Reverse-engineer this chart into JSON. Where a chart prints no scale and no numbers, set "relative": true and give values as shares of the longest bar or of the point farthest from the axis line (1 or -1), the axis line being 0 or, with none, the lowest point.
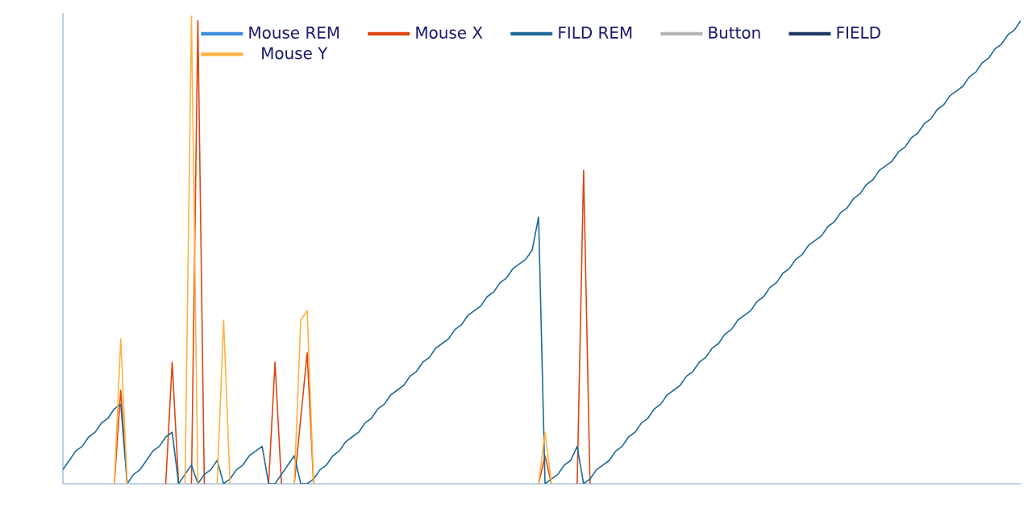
{
  "chart_data": {
    "type": "line",
    "relative": true,
    "legend": "top",
    "categories": [
      null,
      null,
      null,
      null,
      null,
      null,
      null,
      null,
      null,
      null,
      null,
      null,
      null,
      null,
      null,
      null,
      null,
      null,
      null,
      null,
      null,
      null,
      null,
      null,
      null,
      null,
      null,
      null,
      null,
      null,
      null,
      null,
      null,
      null,
      null,
      null,
      null,
      null,
      null,
      null,
      null,
      null,
      null,
      null,
      null,
      null,
      null,
      null,
      null,
      null,
      null,
      null,
      null,
      null,
      null,
      null,
      null,
      null,
      null,
      null,
      null,
      null,
      null,
      null,
      null,
      null,
      null,
      null,
      null,
      null,
      null,
      null,
      null,
      null,
      null,
      null,
      null,
      null,
      null,
      null,
      null,
      null,
      null,
      null,
      null,
      null,
      null,
      null,
      null,
      null,
      null,
      null,
      null,
      null,
      null,
      null,
      null,
      null,
      null,
      null,
      null,
      null,
      null,
      null,
      null,
      null,
      null,
      null,
      null,
      null,
      null,
      null,
      null,
      null,
      null,
      null,
      null,
      null,
      null,
      null,
      null,
      null,
      null,
      null,
      null,
      null,
      null,
      null,
      null,
      null,
      null,
      null,
      null,
      null,
      null,
      null,
      null,
      null,
      null,
      null,
      null,
      null,
      null,
      null,
      null,
      null,
      null,
      null,
      null,
      null
    ],
    "series": [
      {
        "name": "Mouse REM",
        "color": "#3b8de0",
        "values": [
          null,
          null,
          null,
          null,
          null,
          null,
          null,
          null,
          null,
          null,
          null,
          null,
          null,
          null,
          null,
          null,
          null,
          null,
          null,
          null,
          null,
          null,
          null,
          null,
          null,
          null,
          null,
          null,
          null,
          null,
          null,
          null,
          null,
          null,
          null,
          null,
          null,
          null,
          null,
          null,
          null,
          null,
          null,
          null,
          null,
          null,
          null,
          null,
          null,
          null,
          null,
          null,
          null,
          null,
          null,
          null,
          null,
          null,
          null,
          null,
          null,
          null,
          null,
          null,
          null,
          null,
          null,
          null,
          null,
          null,
          null,
          null,
          null,
          null,
          null,
          null,
          null,
          null,
          null,
          null,
          null,
          null,
          null,
          null,
          null,
          null,
          null,
          null,
          null,
          null,
          null,
          null,
          null,
          null,
          null,
          null,
          null,
          null,
          null,
          null,
          null,
          null,
          null,
          null,
          null,
          null,
          null,
          null,
          null,
          null,
          null,
          null,
          null,
          null,
          null,
          null,
          null,
          null,
          null,
          null,
          null,
          null,
          null,
          null,
          null,
          null,
          null,
          null,
          null,
          null,
          null,
          null,
          null,
          null,
          null,
          null,
          null,
          null,
          null,
          null,
          null,
          null,
          null,
          null,
          null,
          null,
          null,
          null,
          null,
          null
        ]
      },
      {
        "name": "Mouse X",
        "color": "#dd4510",
        "values": [
          null,
          null,
          null,
          null,
          null,
          null,
          null,
          null,
          0,
          0.2,
          0,
          null,
          null,
          null,
          null,
          null,
          0,
          0.26,
          0,
          null,
          0,
          0.99,
          0,
          null,
          null,
          null,
          null,
          null,
          null,
          null,
          null,
          null,
          0,
          0.26,
          0,
          null,
          0,
          0.14,
          0.28,
          0,
          null,
          null,
          null,
          null,
          null,
          null,
          null,
          null,
          null,
          null,
          null,
          null,
          null,
          null,
          null,
          null,
          null,
          null,
          null,
          null,
          null,
          null,
          null,
          null,
          null,
          null,
          null,
          null,
          null,
          null,
          null,
          null,
          null,
          null,
          0,
          0.06,
          0,
          null,
          null,
          null,
          0,
          0.67,
          0,
          null,
          null,
          null,
          null,
          null,
          null,
          null,
          null,
          null,
          null,
          null,
          null,
          null,
          null,
          null,
          null,
          null,
          null,
          null,
          null,
          null,
          null,
          null,
          null,
          null,
          null,
          null,
          null,
          null,
          null,
          null,
          null,
          null,
          null,
          null,
          null,
          null,
          null,
          null,
          null,
          null,
          null,
          null,
          null,
          null,
          null,
          null,
          null,
          null,
          null,
          null,
          null,
          null,
          null,
          null,
          null,
          null,
          null,
          null,
          null,
          null,
          null,
          null,
          null,
          null,
          null,
          null
        ]
      },
      {
        "name": "FILD REM",
        "color": "#1d6a96",
        "values": [
          0.03,
          0.05,
          0.07,
          0.08,
          0.1,
          0.11,
          0.13,
          0.14,
          0.16,
          0.17,
          0,
          0.02,
          0.03,
          0.05,
          0.07,
          0.08,
          0.1,
          0.11,
          0,
          0.02,
          0.04,
          0,
          0.02,
          0.03,
          0.05,
          0,
          0.01,
          0.03,
          0.04,
          0.06,
          0.07,
          0.08,
          0,
          0,
          0.02,
          0.04,
          0.06,
          0,
          0,
          0.01,
          0.03,
          0.04,
          0.06,
          0.07,
          0.09,
          0.1,
          0.11,
          0.13,
          0.14,
          0.16,
          0.17,
          0.19,
          0.2,
          0.21,
          0.23,
          0.24,
          0.26,
          0.27,
          0.29,
          0.3,
          0.31,
          0.33,
          0.34,
          0.36,
          0.37,
          0.38,
          0.4,
          0.41,
          0.43,
          0.44,
          0.46,
          0.47,
          0.48,
          0.5,
          0.57,
          0,
          0.01,
          0.02,
          0.04,
          0.05,
          0.08,
          0,
          0.01,
          0.03,
          0.04,
          0.05,
          0.07,
          0.08,
          0.1,
          0.11,
          0.13,
          0.14,
          0.16,
          0.17,
          0.19,
          0.2,
          0.21,
          0.23,
          0.24,
          0.26,
          0.27,
          0.29,
          0.3,
          0.32,
          0.33,
          0.35,
          0.36,
          0.37,
          0.39,
          0.4,
          0.42,
          0.43,
          0.45,
          0.46,
          0.48,
          0.49,
          0.51,
          0.52,
          0.53,
          0.55,
          0.56,
          0.58,
          0.59,
          0.61,
          0.62,
          0.64,
          0.65,
          0.67,
          0.68,
          0.69,
          0.71,
          0.72,
          0.74,
          0.75,
          0.77,
          0.78,
          0.8,
          0.81,
          0.83,
          0.84,
          0.85,
          0.87,
          0.88,
          0.9,
          0.91,
          0.93,
          0.94,
          0.96,
          0.97,
          0.99
        ]
      },
      {
        "name": "Button",
        "color": "#b4b4b4",
        "values": [
          null,
          null,
          null,
          null,
          null,
          null,
          null,
          null,
          null,
          null,
          null,
          null,
          null,
          null,
          null,
          null,
          null,
          null,
          null,
          null,
          null,
          null,
          null,
          null,
          null,
          null,
          null,
          null,
          null,
          null,
          null,
          null,
          null,
          null,
          null,
          null,
          null,
          null,
          null,
          null,
          null,
          null,
          null,
          null,
          null,
          null,
          null,
          null,
          null,
          null,
          null,
          null,
          null,
          null,
          null,
          null,
          null,
          null,
          null,
          null,
          null,
          null,
          null,
          null,
          null,
          null,
          null,
          null,
          null,
          null,
          null,
          null,
          null,
          null,
          null,
          null,
          null,
          null,
          null,
          null,
          null,
          null,
          null,
          null,
          null,
          null,
          null,
          null,
          null,
          null,
          null,
          null,
          null,
          null,
          null,
          null,
          null,
          null,
          null,
          null,
          null,
          null,
          null,
          null,
          null,
          null,
          null,
          null,
          null,
          null,
          null,
          null,
          null,
          null,
          null,
          null,
          null,
          null,
          null,
          null,
          null,
          null,
          null,
          null,
          null,
          null,
          null,
          null,
          null,
          null,
          null,
          null,
          null,
          null,
          null,
          null,
          null,
          null,
          null,
          null,
          null,
          null,
          null,
          null,
          null,
          null,
          null,
          null,
          null,
          null
        ]
      },
      {
        "name": "FIELD",
        "color": "#1f3864",
        "values": [
          null,
          null,
          null,
          null,
          null,
          null,
          null,
          null,
          null,
          null,
          null,
          null,
          null,
          null,
          null,
          null,
          null,
          null,
          null,
          null,
          null,
          null,
          null,
          null,
          null,
          null,
          null,
          null,
          null,
          null,
          null,
          null,
          null,
          null,
          null,
          null,
          null,
          null,
          null,
          null,
          null,
          null,
          null,
          null,
          null,
          null,
          null,
          null,
          null,
          null,
          null,
          null,
          null,
          null,
          null,
          null,
          null,
          null,
          null,
          null,
          null,
          null,
          null,
          null,
          null,
          null,
          null,
          null,
          null,
          null,
          null,
          null,
          null,
          null,
          null,
          null,
          null,
          null,
          null,
          null,
          null,
          null,
          null,
          null,
          null,
          null,
          null,
          null,
          null,
          null,
          null,
          null,
          null,
          null,
          null,
          null,
          null,
          null,
          null,
          null,
          null,
          null,
          null,
          null,
          null,
          null,
          null,
          null,
          null,
          null,
          null,
          null,
          null,
          null,
          null,
          null,
          null,
          null,
          null,
          null,
          null,
          null,
          null,
          null,
          null,
          null,
          null,
          null,
          null,
          null,
          null,
          null,
          null,
          null,
          null,
          null,
          null,
          null,
          null,
          null,
          null,
          null,
          null,
          null,
          null,
          null,
          null,
          null,
          null,
          null
        ]
      },
      {
        "name": "Mouse Y",
        "color": "#ffb13d",
        "values": [
          null,
          null,
          null,
          null,
          null,
          null,
          null,
          null,
          0,
          0.31,
          0,
          null,
          null,
          null,
          null,
          null,
          null,
          null,
          null,
          0,
          1,
          0,
          null,
          null,
          0,
          0.35,
          0,
          null,
          null,
          null,
          null,
          null,
          null,
          null,
          null,
          null,
          0,
          0.35,
          0.37,
          0,
          null,
          null,
          null,
          null,
          null,
          null,
          null,
          null,
          null,
          null,
          null,
          null,
          null,
          null,
          null,
          null,
          null,
          null,
          null,
          null,
          null,
          null,
          null,
          null,
          null,
          null,
          null,
          null,
          null,
          null,
          null,
          null,
          null,
          null,
          0,
          0.11,
          0,
          null,
          null,
          null,
          null,
          null,
          null,
          null,
          null,
          null,
          null,
          null,
          null,
          null,
          null,
          null,
          null,
          null,
          null,
          null,
          null,
          null,
          null,
          null,
          null,
          null,
          null,
          null,
          null,
          null,
          null,
          null,
          null,
          null,
          null,
          null,
          null,
          null,
          null,
          null,
          null,
          null,
          null,
          null,
          null,
          null,
          null,
          null,
          null,
          null,
          null,
          null,
          null,
          null,
          null,
          null,
          null,
          null,
          null,
          null,
          null,
          null,
          null,
          null,
          null,
          null,
          null,
          null,
          null,
          null,
          null,
          null,
          null,
          null
        ]
      }
    ]
  }
}
